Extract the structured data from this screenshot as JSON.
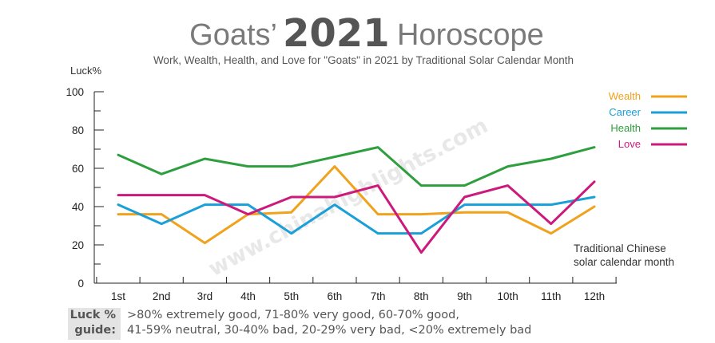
{
  "header": {
    "title_prefix": "Goats’",
    "title_year": "2021",
    "title_suffix": "Horoscope",
    "subtitle": "Work, Wealth, Health, and Love for \"Goats\" in 2021 by Traditional Solar Calendar Month"
  },
  "watermark": "www.chinahighlights.com",
  "guide": {
    "label_line1": "Luck %",
    "label_line2": "guide:",
    "line1": ">80% extremely good, 71-80% very good, 60-70% good,",
    "line2": "41-59% neutral, 30-40% bad, 20-29% very bad, <20% extremely bad"
  },
  "chart_data": {
    "type": "line",
    "ylabel": "Luck%",
    "xlabel_line1": "Traditional Chinese",
    "xlabel_line2": "solar calendar month",
    "ylim": [
      0,
      100
    ],
    "yticks": [
      0,
      20,
      40,
      60,
      80,
      100
    ],
    "categories": [
      "1st",
      "2nd",
      "3rd",
      "4th",
      "5th",
      "6th",
      "7th",
      "8th",
      "9th",
      "10th",
      "11th",
      "12th"
    ],
    "legend_position": "top-right",
    "grid": false,
    "series": [
      {
        "name": "Wealth",
        "color": "#f0a21c",
        "values": [
          36,
          36,
          21,
          36,
          37,
          61,
          36,
          36,
          37,
          37,
          26,
          40
        ]
      },
      {
        "name": "Career",
        "color": "#1a9fd9",
        "values": [
          41,
          31,
          41,
          41,
          26,
          41,
          26,
          26,
          41,
          41,
          41,
          45
        ]
      },
      {
        "name": "Health",
        "color": "#2e9e3e",
        "values": [
          67,
          57,
          65,
          61,
          61,
          66,
          71,
          51,
          51,
          61,
          65,
          71
        ]
      },
      {
        "name": "Love",
        "color": "#cc1a7c",
        "values": [
          46,
          46,
          46,
          36,
          45,
          45,
          51,
          16,
          45,
          51,
          31,
          53
        ]
      }
    ]
  }
}
